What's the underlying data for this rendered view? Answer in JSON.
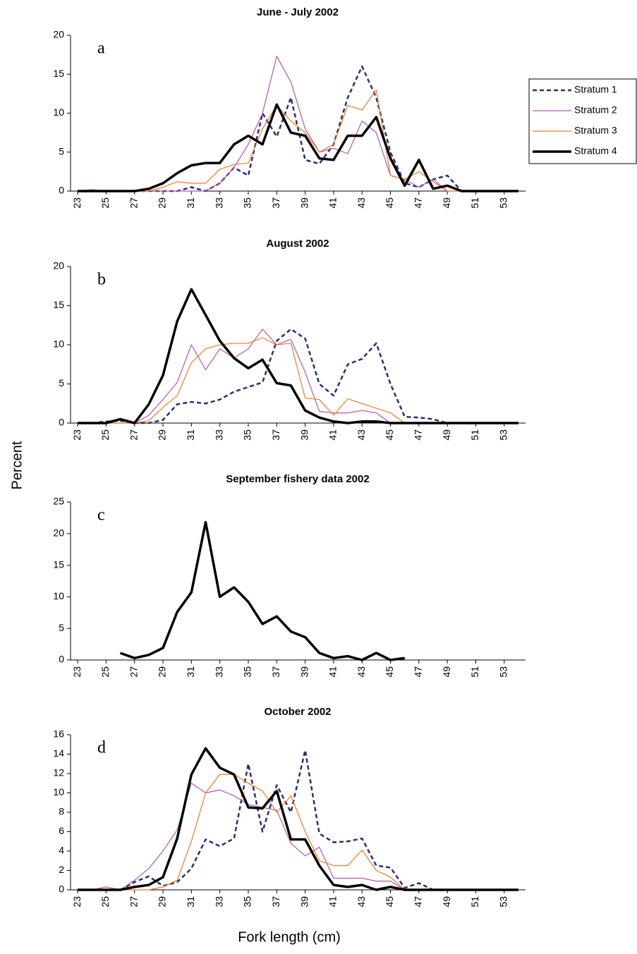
{
  "ylabel": "Percent",
  "xlabel": "Fork length (cm)",
  "chart_data": [
    {
      "type": "line",
      "title": "June - July 2002",
      "annotation": "a",
      "legend": "right",
      "x": [
        23,
        24,
        25,
        26,
        27,
        28,
        29,
        30,
        31,
        32,
        33,
        34,
        35,
        36,
        37,
        38,
        39,
        40,
        41,
        42,
        43,
        44,
        45,
        46,
        47,
        48,
        49,
        50,
        51,
        52,
        53,
        54
      ],
      "xlim": [
        22.5,
        54.5
      ],
      "xticks": [
        23,
        25,
        27,
        29,
        31,
        33,
        35,
        37,
        39,
        41,
        43,
        45,
        47,
        49,
        51,
        53
      ],
      "ylim": [
        0,
        20
      ],
      "yticks": [
        0,
        5,
        10,
        15,
        20
      ],
      "series": [
        {
          "name": "Stratum 1",
          "color": "#2b2f6e",
          "dashed": true,
          "linewidth": 2.5,
          "values": [
            0,
            0,
            0,
            0,
            0,
            0,
            0,
            0,
            0.5,
            0,
            1,
            3,
            2,
            10,
            7,
            12,
            4,
            3.5,
            6,
            12,
            16,
            12,
            5,
            1,
            0.5,
            1.5,
            2,
            0,
            0,
            0,
            0,
            0
          ]
        },
        {
          "name": "Stratum 2",
          "color": "#b455b0",
          "dashed": false,
          "linewidth": 1.2,
          "values": [
            0,
            0,
            0,
            0,
            0,
            0,
            0,
            0,
            0,
            0,
            1,
            3,
            6,
            10,
            17.3,
            14,
            8,
            5,
            5.5,
            4.8,
            9,
            7.5,
            2,
            1.5,
            0.5,
            1.5,
            0,
            0,
            0,
            0,
            0,
            0
          ]
        },
        {
          "name": "Stratum 3",
          "color": "#f07a22",
          "dashed": false,
          "linewidth": 1.2,
          "values": [
            0,
            0.2,
            0,
            0,
            0,
            0,
            0.5,
            1.2,
            1,
            1,
            2.8,
            3.4,
            3.6,
            8,
            11,
            9,
            7.5,
            5,
            6,
            11,
            10.4,
            13,
            2,
            1.5,
            2.5,
            1.2,
            0,
            0,
            0,
            0,
            0,
            0
          ]
        },
        {
          "name": "Stratum 4",
          "color": "#000000",
          "dashed": false,
          "linewidth": 3.5,
          "values": [
            0,
            0,
            0,
            0,
            0,
            0.3,
            1,
            2.3,
            3.3,
            3.6,
            3.6,
            6,
            7.1,
            6,
            11.1,
            7.5,
            7.1,
            4.2,
            4,
            7.1,
            7.1,
            9.5,
            4.2,
            0.7,
            4,
            0.3,
            0.7,
            0,
            0,
            0,
            0,
            0
          ]
        }
      ]
    },
    {
      "type": "line",
      "title": "August 2002",
      "annotation": "b",
      "x": [
        23,
        24,
        25,
        26,
        27,
        28,
        29,
        30,
        31,
        32,
        33,
        34,
        35,
        36,
        37,
        38,
        39,
        40,
        41,
        42,
        43,
        44,
        45,
        46,
        47,
        48,
        49,
        50,
        51,
        52,
        53,
        54
      ],
      "xlim": [
        22.5,
        54.5
      ],
      "xticks": [
        23,
        25,
        27,
        29,
        31,
        33,
        35,
        37,
        39,
        41,
        43,
        45,
        47,
        49,
        51,
        53
      ],
      "ylim": [
        0,
        20
      ],
      "yticks": [
        0,
        5,
        10,
        15,
        20
      ],
      "series": [
        {
          "color": "#2b2f6e",
          "dashed": true,
          "linewidth": 2.5,
          "values": [
            0,
            0,
            0.2,
            0.3,
            0,
            0,
            0.4,
            2.4,
            2.7,
            2.5,
            3,
            4,
            4.6,
            5.2,
            10.5,
            12,
            10.8,
            5,
            3.5,
            7.5,
            8.2,
            10.2,
            5,
            0.8,
            0.7,
            0.5,
            0,
            0,
            0,
            0,
            0,
            0
          ]
        },
        {
          "color": "#b455b0",
          "dashed": false,
          "linewidth": 1.2,
          "values": [
            0,
            0,
            0,
            0,
            0,
            1,
            3,
            5.2,
            10,
            6.8,
            9.5,
            8.3,
            9.5,
            12,
            10,
            10.7,
            6.5,
            1.5,
            1.3,
            1.3,
            1.6,
            1.3,
            0,
            0,
            0,
            0,
            0,
            0,
            0,
            0,
            0,
            0
          ]
        },
        {
          "color": "#f07a22",
          "dashed": false,
          "linewidth": 1.2,
          "values": [
            0,
            0,
            0,
            0,
            0,
            0.3,
            2,
            3.5,
            7.7,
            9.5,
            10,
            10.2,
            10.2,
            10.9,
            10,
            10.2,
            3.2,
            3,
            1,
            3.1,
            2.5,
            1.9,
            1.3,
            0,
            0,
            0,
            0,
            0,
            0,
            0,
            0,
            0
          ]
        },
        {
          "color": "#000000",
          "dashed": false,
          "linewidth": 3.5,
          "values": [
            0,
            0,
            0,
            0.5,
            0,
            2.4,
            6.1,
            13,
            17.1,
            13.8,
            10.5,
            8.3,
            7,
            8.1,
            5.1,
            4.8,
            1.6,
            0.7,
            0.2,
            0,
            0.2,
            0.2,
            0,
            0,
            0,
            0,
            0,
            0,
            0,
            0,
            0,
            0
          ]
        }
      ]
    },
    {
      "type": "line",
      "title": "September fishery data 2002",
      "annotation": "c",
      "x": [
        23,
        24,
        25,
        26,
        27,
        28,
        29,
        30,
        31,
        32,
        33,
        34,
        35,
        36,
        37,
        38,
        39,
        40,
        41,
        42,
        43,
        44,
        45,
        46,
        47,
        48,
        49,
        50,
        51,
        52,
        53,
        54
      ],
      "xlim": [
        22.5,
        54.5
      ],
      "xticks": [
        23,
        25,
        27,
        29,
        31,
        33,
        35,
        37,
        39,
        41,
        43,
        45,
        47,
        49,
        51,
        53
      ],
      "ylim": [
        0,
        25
      ],
      "yticks": [
        0,
        5,
        10,
        15,
        20,
        25
      ],
      "series": [
        {
          "color": "#000000",
          "dashed": false,
          "linewidth": 3.5,
          "values": [
            null,
            null,
            null,
            1.1,
            0.3,
            0.8,
            1.9,
            7.6,
            10.7,
            21.8,
            10,
            11.5,
            9.2,
            5.7,
            6.9,
            4.5,
            3.6,
            1.1,
            0.3,
            0.6,
            0,
            1.1,
            0,
            0.3,
            null,
            null,
            null,
            null,
            null,
            null,
            null,
            null
          ]
        }
      ]
    },
    {
      "type": "line",
      "title": "October 2002",
      "annotation": "d",
      "x": [
        23,
        24,
        25,
        26,
        27,
        28,
        29,
        30,
        31,
        32,
        33,
        34,
        35,
        36,
        37,
        38,
        39,
        40,
        41,
        42,
        43,
        44,
        45,
        46,
        47,
        48,
        49,
        50,
        51,
        52,
        53,
        54
      ],
      "xlim": [
        22.5,
        54.5
      ],
      "xticks": [
        23,
        25,
        27,
        29,
        31,
        33,
        35,
        37,
        39,
        41,
        43,
        45,
        47,
        49,
        51,
        53
      ],
      "ylim": [
        0,
        16
      ],
      "yticks": [
        0,
        2,
        4,
        6,
        8,
        10,
        12,
        14,
        16
      ],
      "series": [
        {
          "color": "#2b2f6e",
          "dashed": true,
          "linewidth": 2.5,
          "values": [
            0,
            0,
            0,
            0,
            0.8,
            1.4,
            0.4,
            0.8,
            2.2,
            5.2,
            4.5,
            5.3,
            13,
            6,
            10.8,
            8,
            14.4,
            5.8,
            4.9,
            5,
            5.3,
            2.5,
            2.3,
            0.2,
            0.7,
            0,
            0,
            0,
            0,
            0,
            0,
            0
          ]
        },
        {
          "color": "#b455b0",
          "dashed": false,
          "linewidth": 1.2,
          "values": [
            0,
            0,
            0.3,
            0,
            1,
            2.2,
            4,
            6.2,
            11,
            10,
            10.3,
            9.7,
            8.8,
            8.5,
            8.2,
            4.8,
            3.5,
            4.4,
            1.2,
            1.2,
            1.2,
            0.9,
            0.9,
            0,
            0,
            0,
            0,
            0,
            0,
            0,
            0,
            0
          ]
        },
        {
          "color": "#f07a22",
          "dashed": false,
          "linewidth": 1.2,
          "values": [
            0,
            0,
            0,
            0,
            0,
            0,
            0.3,
            1,
            5,
            10,
            11.9,
            11.9,
            11,
            10.2,
            8,
            9.7,
            6,
            3,
            2.5,
            2.5,
            4.1,
            2,
            1.3,
            0,
            0,
            0,
            0,
            0,
            0,
            0,
            0,
            0
          ]
        },
        {
          "color": "#000000",
          "dashed": false,
          "linewidth": 3.5,
          "values": [
            0,
            0,
            0,
            0,
            0.3,
            0.5,
            1.3,
            5.3,
            11.9,
            14.6,
            12.6,
            11.9,
            8.5,
            8.4,
            10.2,
            5.2,
            5.2,
            2.5,
            0.5,
            0.3,
            0.5,
            0,
            0.3,
            0,
            0,
            0,
            0,
            0,
            0,
            0,
            0,
            0
          ]
        }
      ]
    }
  ]
}
